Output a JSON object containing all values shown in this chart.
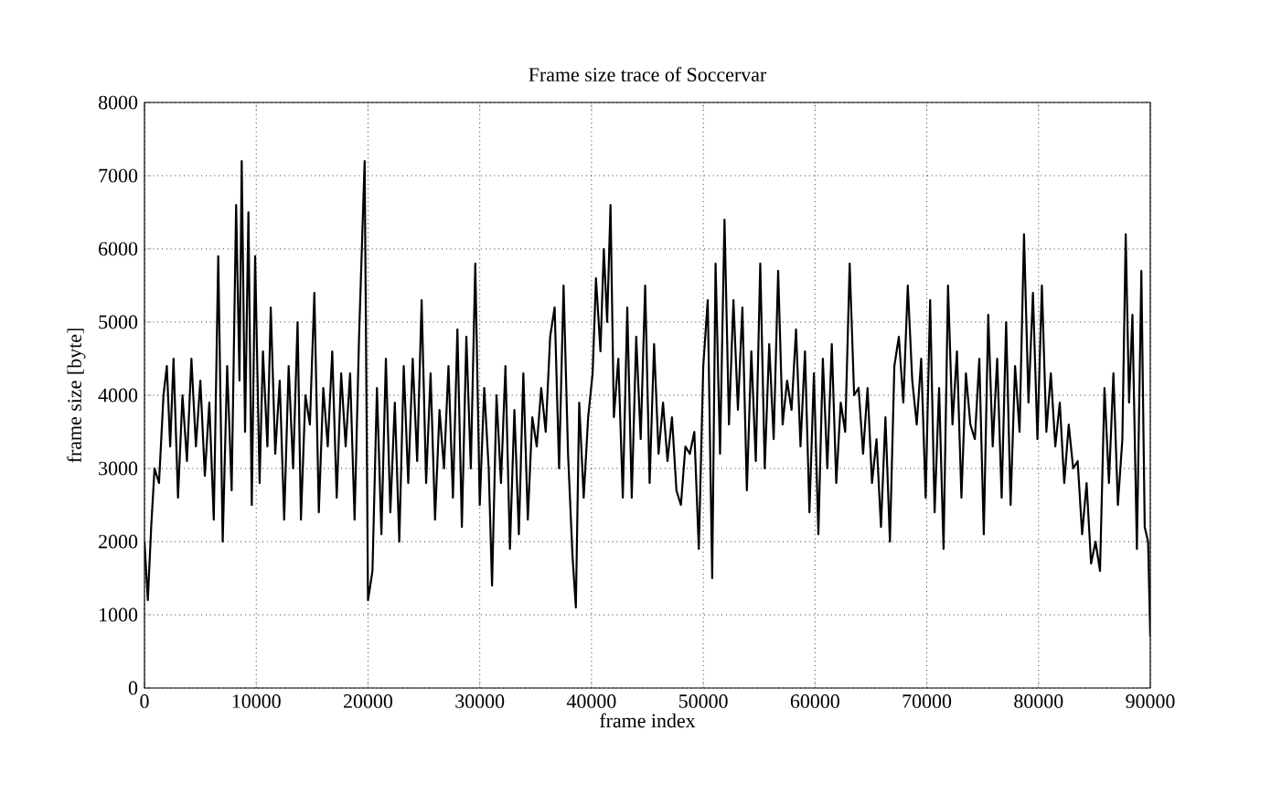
{
  "chart_data": {
    "type": "line",
    "title": "Frame size trace of Soccervar",
    "xlabel": "frame index",
    "ylabel": "frame size [byte]",
    "xlim": [
      0,
      90000
    ],
    "ylim": [
      0,
      8000
    ],
    "xticks": [
      0,
      10000,
      20000,
      30000,
      40000,
      50000,
      60000,
      70000,
      80000,
      90000
    ],
    "yticks": [
      0,
      1000,
      2000,
      3000,
      4000,
      5000,
      6000,
      7000,
      8000
    ],
    "grid": true,
    "marker": "none",
    "line_style": "solid",
    "series": [
      {
        "color": "#000000",
        "x": [
          0,
          300,
          600,
          900,
          1300,
          1700,
          2000,
          2300,
          2600,
          3000,
          3400,
          3800,
          4200,
          4600,
          5000,
          5400,
          5800,
          6200,
          6600,
          7000,
          7400,
          7800,
          8200,
          8500,
          8700,
          9000,
          9300,
          9600,
          9900,
          10300,
          10600,
          11000,
          11300,
          11700,
          12100,
          12500,
          12900,
          13300,
          13700,
          14000,
          14400,
          14800,
          15200,
          15600,
          16000,
          16400,
          16800,
          17200,
          17600,
          18000,
          18400,
          18800,
          19200,
          19700,
          20000,
          20400,
          20800,
          21200,
          21600,
          22000,
          22400,
          22800,
          23200,
          23600,
          24000,
          24400,
          24800,
          25200,
          25600,
          26000,
          26400,
          26800,
          27200,
          27600,
          28000,
          28400,
          28800,
          29200,
          29600,
          30000,
          30400,
          30800,
          31100,
          31500,
          31900,
          32300,
          32700,
          33100,
          33500,
          33900,
          34300,
          34700,
          35100,
          35500,
          35900,
          36300,
          36700,
          37100,
          37500,
          37900,
          38300,
          38600,
          38900,
          39300,
          39700,
          40100,
          40400,
          40800,
          41100,
          41400,
          41700,
          42000,
          42400,
          42800,
          43200,
          43600,
          44000,
          44400,
          44800,
          45200,
          45600,
          46000,
          46400,
          46800,
          47200,
          47600,
          48000,
          48400,
          48800,
          49200,
          49600,
          50000,
          50400,
          50800,
          51100,
          51500,
          51900,
          52300,
          52700,
          53100,
          53500,
          53900,
          54300,
          54700,
          55100,
          55500,
          55900,
          56300,
          56700,
          57100,
          57500,
          57900,
          58300,
          58700,
          59100,
          59500,
          59900,
          60300,
          60700,
          61100,
          61500,
          61900,
          62300,
          62700,
          63100,
          63500,
          63900,
          64300,
          64700,
          65100,
          65500,
          65900,
          66300,
          66700,
          67100,
          67500,
          67900,
          68300,
          68700,
          69100,
          69500,
          69900,
          70300,
          70700,
          71100,
          71500,
          71900,
          72300,
          72700,
          73100,
          73500,
          73900,
          74300,
          74700,
          75100,
          75500,
          75900,
          76300,
          76700,
          77100,
          77500,
          77900,
          78300,
          78700,
          79100,
          79500,
          79900,
          80300,
          80700,
          81100,
          81500,
          81900,
          82300,
          82700,
          83100,
          83500,
          83900,
          84300,
          84700,
          85100,
          85500,
          85900,
          86300,
          86700,
          87100,
          87500,
          87800,
          88100,
          88400,
          88800,
          89200,
          89500,
          89800,
          90000
        ],
        "values": [
          2000,
          1200,
          2200,
          3000,
          2800,
          4000,
          4400,
          3300,
          4500,
          2600,
          4000,
          3100,
          4500,
          3300,
          4200,
          2900,
          3900,
          2300,
          5900,
          2000,
          4400,
          2700,
          6600,
          4200,
          7200,
          3500,
          6500,
          2500,
          5900,
          2800,
          4600,
          3300,
          5200,
          3200,
          4200,
          2300,
          4400,
          3000,
          5000,
          2300,
          4000,
          3600,
          5400,
          2400,
          4100,
          3300,
          4600,
          2600,
          4300,
          3300,
          4300,
          2300,
          4800,
          7200,
          1200,
          1600,
          4100,
          2100,
          4500,
          2400,
          3900,
          2000,
          4400,
          2800,
          4500,
          3100,
          5300,
          2800,
          4300,
          2300,
          3800,
          3000,
          4400,
          2600,
          4900,
          2200,
          4800,
          3000,
          5800,
          2500,
          4100,
          3000,
          1400,
          4000,
          2800,
          4400,
          1900,
          3800,
          2100,
          4300,
          2300,
          3700,
          3300,
          4100,
          3500,
          4800,
          5200,
          3000,
          5500,
          3200,
          1800,
          1100,
          3900,
          2600,
          3700,
          4300,
          5600,
          4600,
          6000,
          5000,
          6600,
          3700,
          4500,
          2600,
          5200,
          2600,
          4800,
          3400,
          5500,
          2800,
          4700,
          3200,
          3900,
          3100,
          3700,
          2700,
          2500,
          3300,
          3200,
          3500,
          1900,
          4400,
          5300,
          1500,
          5800,
          3200,
          6400,
          3600,
          5300,
          3800,
          5200,
          2700,
          4600,
          3100,
          5800,
          3000,
          4700,
          3400,
          5700,
          3600,
          4200,
          3800,
          4900,
          3300,
          4600,
          2400,
          4300,
          2100,
          4500,
          3000,
          4700,
          2800,
          3900,
          3500,
          5800,
          4000,
          4100,
          3200,
          4100,
          2800,
          3400,
          2200,
          3700,
          2000,
          4400,
          4800,
          3900,
          5500,
          4200,
          3600,
          4500,
          2600,
          5300,
          2400,
          4100,
          1900,
          5500,
          3600,
          4600,
          2600,
          4300,
          3600,
          3400,
          4500,
          2100,
          5100,
          3300,
          4500,
          2600,
          5000,
          2500,
          4400,
          3500,
          6200,
          3900,
          5400,
          3400,
          5500,
          3500,
          4300,
          3300,
          3900,
          2800,
          3600,
          3000,
          3100,
          2100,
          2800,
          1700,
          2000,
          1600,
          4100,
          2800,
          4300,
          2500,
          3400,
          6200,
          3900,
          5100,
          1900,
          5700,
          2200,
          2000,
          700
        ]
      }
    ]
  }
}
